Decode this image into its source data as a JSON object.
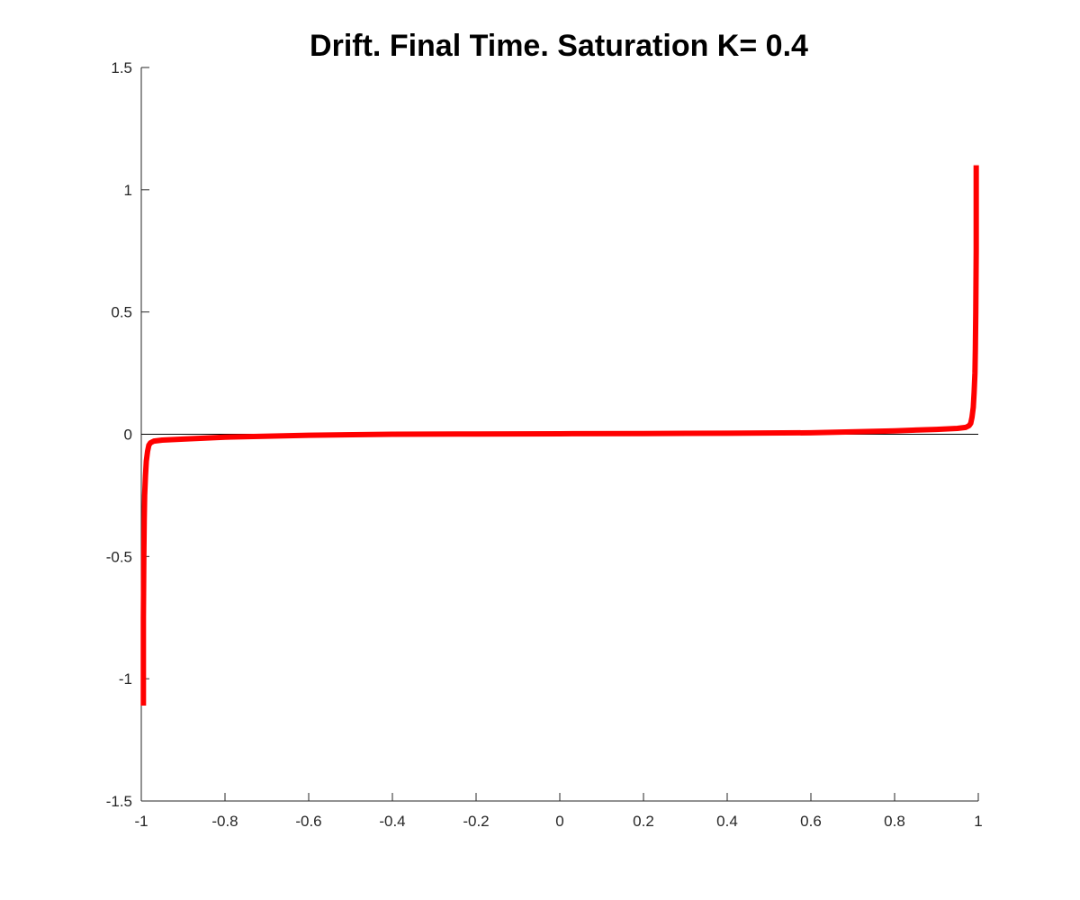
{
  "chart_data": {
    "type": "line",
    "title": "Drift. Final Time. Saturation K= 0.4",
    "xlabel": "",
    "ylabel": "",
    "xlim": [
      -1,
      1
    ],
    "ylim": [
      -1.5,
      1.5
    ],
    "xticks": [
      -1,
      -0.8,
      -0.6,
      -0.4,
      -0.2,
      0,
      0.2,
      0.4,
      0.6,
      0.8,
      1
    ],
    "yticks": [
      -1.5,
      -1,
      -0.5,
      0,
      0.5,
      1,
      1.5
    ],
    "xtick_labels": [
      "-1",
      "-0.8",
      "-0.6",
      "-0.4",
      "-0.2",
      "0",
      "0.2",
      "0.4",
      "0.6",
      "0.8",
      "1"
    ],
    "ytick_labels": [
      "-1.5",
      "-1",
      "-0.5",
      "0",
      "0.5",
      "1",
      "1.5"
    ],
    "grid": false,
    "legend": "none",
    "reference_lines": [
      {
        "orientation": "horizontal",
        "y": 0,
        "color": "#000000"
      }
    ],
    "series": [
      {
        "color": "#ff0000",
        "x": [
          -0.995,
          -0.995,
          -0.994,
          -0.993,
          -0.992,
          -0.99,
          -0.988,
          -0.985,
          -0.982,
          -0.978,
          -0.97,
          -0.95,
          -0.9,
          -0.8,
          -0.6,
          -0.4,
          -0.2,
          0,
          0.2,
          0.4,
          0.6,
          0.8,
          0.9,
          0.95,
          0.97,
          0.978,
          0.982,
          0.985,
          0.988,
          0.99,
          0.992,
          0.993,
          0.994,
          0.995,
          0.995
        ],
        "y": [
          -1.11,
          -0.75,
          -0.5,
          -0.35,
          -0.25,
          -0.17,
          -0.11,
          -0.07,
          -0.045,
          -0.035,
          -0.028,
          -0.024,
          -0.02,
          -0.012,
          -0.004,
          0.0,
          0.001,
          0.002,
          0.003,
          0.004,
          0.006,
          0.014,
          0.02,
          0.024,
          0.028,
          0.035,
          0.045,
          0.07,
          0.11,
          0.17,
          0.25,
          0.35,
          0.5,
          0.75,
          1.1
        ]
      }
    ]
  }
}
